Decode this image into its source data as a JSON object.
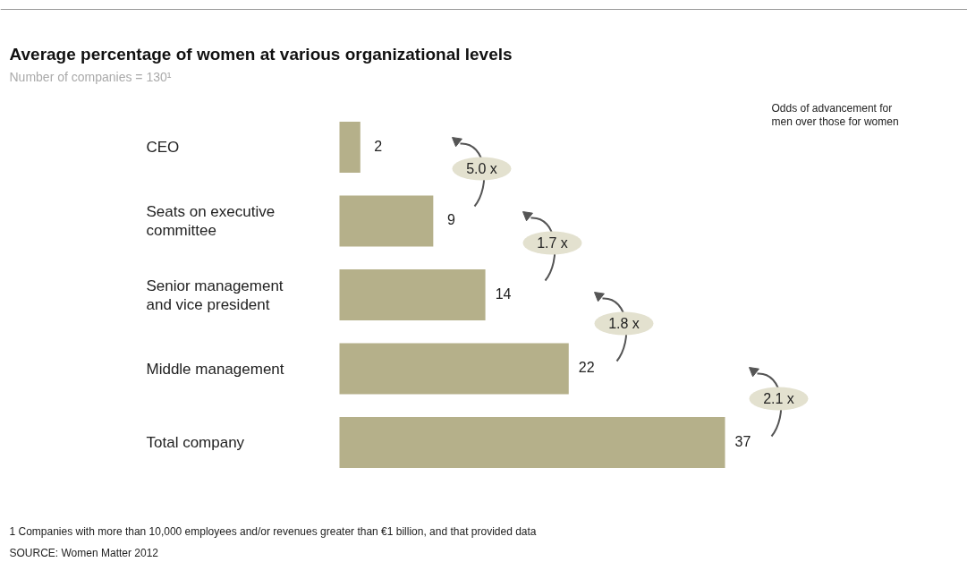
{
  "chart_data": {
    "type": "bar",
    "orientation": "horizontal",
    "title": "Average percentage of women at various organizational levels",
    "subtitle": "Number of companies = 130¹",
    "categories": [
      "CEO",
      "Seats on executive committee",
      "Senior management and vice president",
      "Middle management",
      "Total company"
    ],
    "values": [
      2,
      9,
      14,
      22,
      37
    ],
    "color": "#b5b08a",
    "data_labels": true,
    "annotations": [
      "5.0 x",
      "1.7 x",
      "1.8 x",
      "2.1 x",
      "Odds of advancement for men over those for women",
      "1 Companies with more than 10,000 employees and/or revenues greater than €1 billion, and that provided data",
      "SOURCE: Women Matter 2012"
    ]
  }
}
